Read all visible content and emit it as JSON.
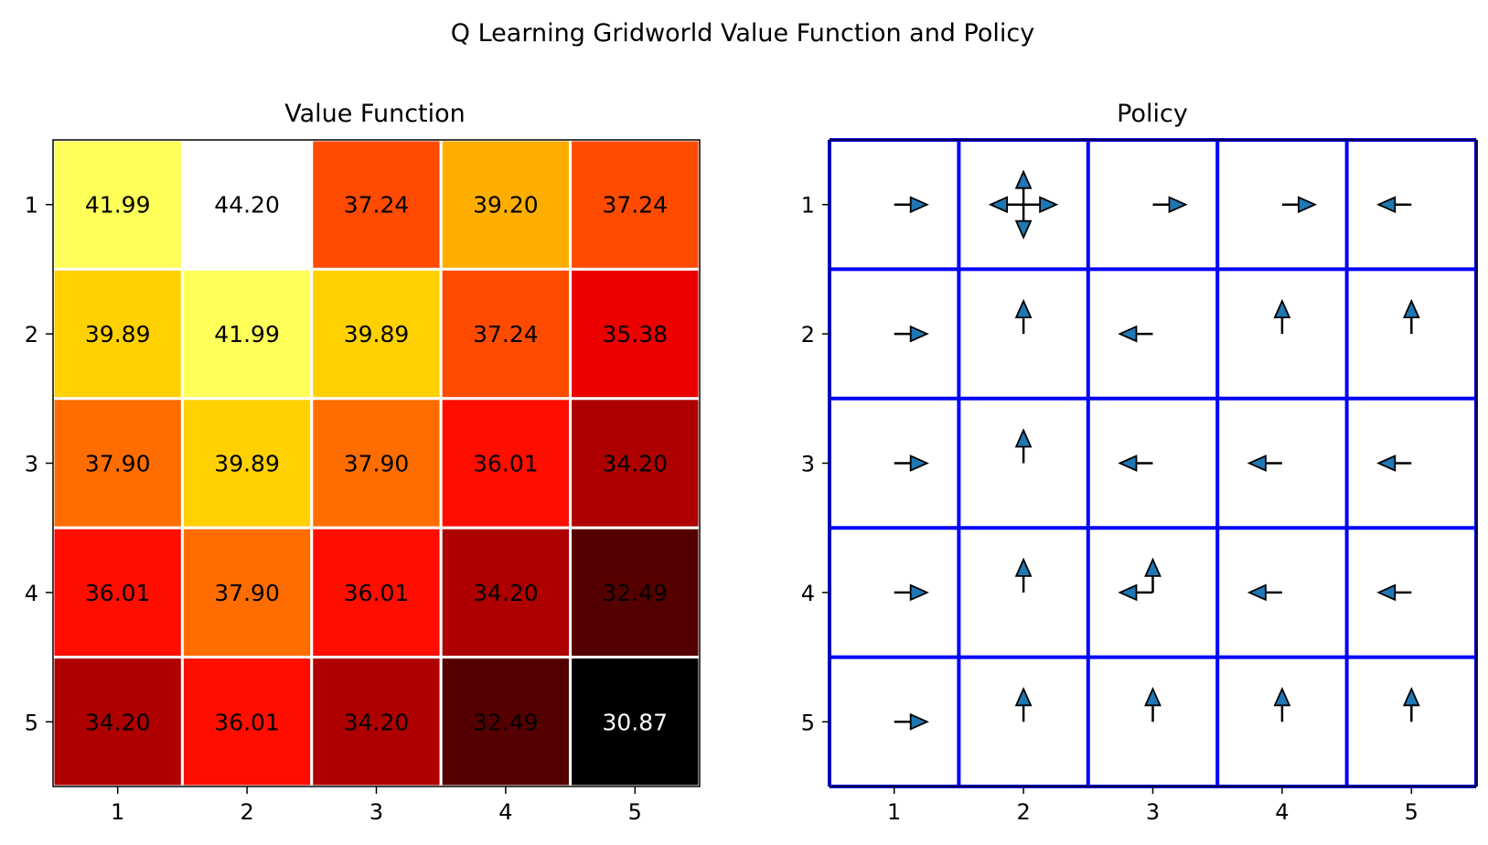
{
  "figure": {
    "suptitle": "Q Learning Gridworld Value Function and Policy"
  },
  "colors": {
    "policy_grid": "#0000ff",
    "arrow_fill": "#1f77b4",
    "arrow_edge": "#000000",
    "frame": "#000000",
    "cell_separator": "#ffffff"
  },
  "chart_data": [
    {
      "type": "heatmap",
      "title": "Value Function",
      "colormap": "hot",
      "vmin": 30.87,
      "vmax": 44.2,
      "x_ticks": [
        "1",
        "2",
        "3",
        "4",
        "5"
      ],
      "y_ticks": [
        "1",
        "2",
        "3",
        "4",
        "5"
      ],
      "values": [
        [
          41.99,
          44.2,
          37.24,
          39.2,
          37.24
        ],
        [
          39.89,
          41.99,
          39.89,
          37.24,
          35.38
        ],
        [
          37.9,
          39.89,
          37.9,
          36.01,
          34.2
        ],
        [
          36.01,
          37.9,
          36.01,
          34.2,
          32.49
        ],
        [
          34.2,
          36.01,
          34.2,
          32.49,
          30.87
        ]
      ],
      "labels": [
        [
          "41.99",
          "44.20",
          "37.24",
          "39.20",
          "37.24"
        ],
        [
          "39.89",
          "41.99",
          "39.89",
          "37.24",
          "35.38"
        ],
        [
          "37.90",
          "39.89",
          "37.90",
          "36.01",
          "34.20"
        ],
        [
          "36.01",
          "37.90",
          "36.01",
          "34.20",
          "32.49"
        ],
        [
          "34.20",
          "36.01",
          "34.20",
          "32.49",
          "30.87"
        ]
      ],
      "label_colors": [
        [
          "#000000",
          "#000000",
          "#000000",
          "#000000",
          "#000000"
        ],
        [
          "#000000",
          "#000000",
          "#000000",
          "#000000",
          "#000000"
        ],
        [
          "#000000",
          "#000000",
          "#000000",
          "#000000",
          "#000000"
        ],
        [
          "#000000",
          "#000000",
          "#000000",
          "#000000",
          "#000000"
        ],
        [
          "#000000",
          "#000000",
          "#000000",
          "#000000",
          "#ffffff"
        ]
      ]
    },
    {
      "type": "quiver",
      "title": "Policy",
      "x_ticks": [
        "1",
        "2",
        "3",
        "4",
        "5"
      ],
      "y_ticks": [
        "1",
        "2",
        "3",
        "4",
        "5"
      ],
      "grid": true,
      "actions": [
        [
          [
            "right"
          ],
          [
            "up",
            "down",
            "left",
            "right"
          ],
          [
            "right"
          ],
          [
            "right"
          ],
          [
            "left"
          ]
        ],
        [
          [
            "right"
          ],
          [
            "up"
          ],
          [
            "left"
          ],
          [
            "up"
          ],
          [
            "up"
          ]
        ],
        [
          [
            "right"
          ],
          [
            "up"
          ],
          [
            "left"
          ],
          [
            "left"
          ],
          [
            "left"
          ]
        ],
        [
          [
            "right"
          ],
          [
            "up"
          ],
          [
            "up",
            "left"
          ],
          [
            "left"
          ],
          [
            "left"
          ]
        ],
        [
          [
            "right"
          ],
          [
            "up"
          ],
          [
            "up"
          ],
          [
            "up"
          ],
          [
            "up"
          ]
        ]
      ]
    }
  ]
}
